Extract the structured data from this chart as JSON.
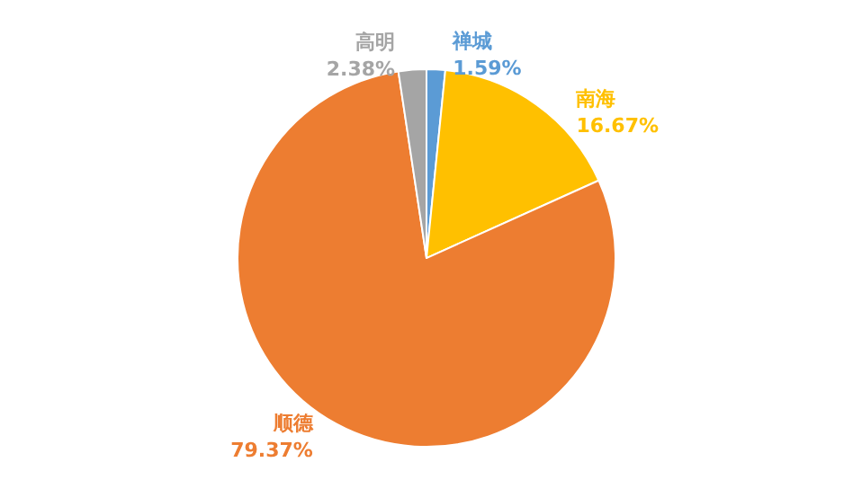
{
  "chart_data": {
    "type": "pie",
    "categories": [
      "禅城",
      "南海",
      "顺德",
      "高明"
    ],
    "values": [
      1.59,
      16.67,
      79.37,
      2.38
    ],
    "colors": [
      "#5b9bd5",
      "#ffc000",
      "#ed7d31",
      "#a5a5a5"
    ],
    "value_labels": [
      "1.59%",
      "16.67%",
      "79.37%",
      "2.38%"
    ],
    "legend": false
  }
}
